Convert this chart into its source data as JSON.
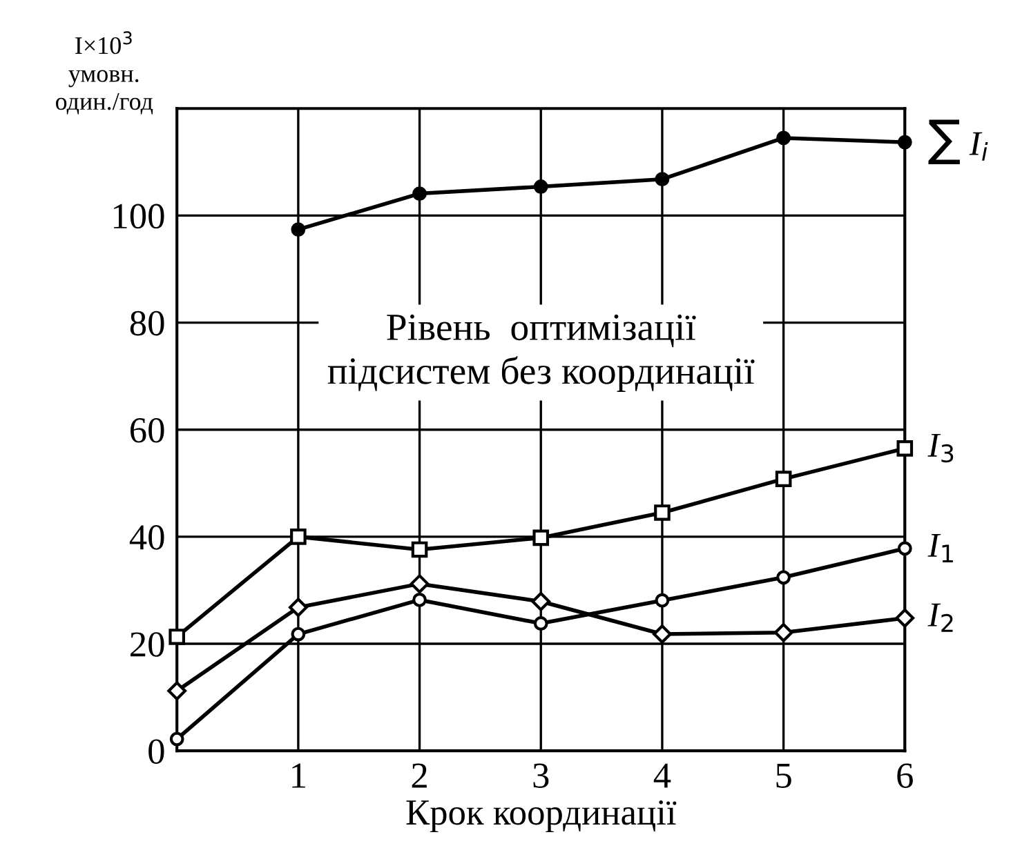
{
  "chart_data": {
    "type": "line",
    "xlabel": "Крок координації",
    "ylabel": "I×10$^{3}$\nумовн.\nодин./год",
    "x": [
      0,
      1,
      2,
      3,
      4,
      5,
      6
    ],
    "xlim": [
      0,
      6
    ],
    "xticks": [
      1,
      2,
      3,
      4,
      5,
      6
    ],
    "ylim": [
      0,
      120
    ],
    "yticks": [
      0,
      20,
      40,
      60,
      80,
      100
    ],
    "grid": true,
    "annotations": [
      "Рівень  оптимізації\nпідсистем без координації"
    ],
    "series": [
      {
        "name": "∑ I$_{i}$",
        "color": "#000000",
        "marker": "circle",
        "values": [
          null,
          97.4,
          104.1,
          105.4,
          106.8,
          114.5,
          113.7
        ]
      },
      {
        "name": "I$_{3}$",
        "color": "#000000",
        "marker": "square",
        "values": [
          21.3,
          40,
          37.6,
          39.8,
          44.5,
          50.8,
          56.5
        ]
      },
      {
        "name": "I$_{1}$",
        "color": "#000000",
        "marker": "circle",
        "values": [
          2.2,
          21.8,
          28.2,
          23.8,
          28.1,
          32.4,
          37.8
        ]
      },
      {
        "name": "I$_{2}$",
        "color": "#000000",
        "marker": "diamond",
        "values": [
          11.2,
          26.8,
          31.2,
          27.9,
          21.8,
          22.1,
          24.8
        ]
      }
    ]
  }
}
